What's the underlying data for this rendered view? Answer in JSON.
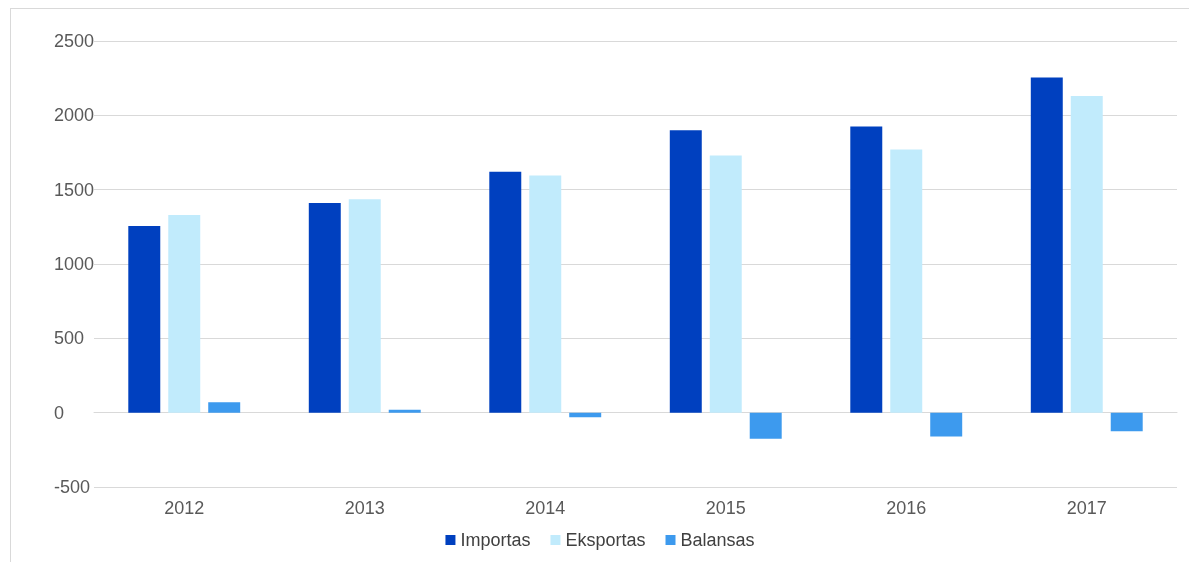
{
  "chart_data": {
    "type": "bar",
    "categories": [
      "2012",
      "2013",
      "2014",
      "2015",
      "2016",
      "2017"
    ],
    "series": [
      {
        "name": "Importas",
        "color": "#0040bf",
        "values": [
          1255,
          1410,
          1620,
          1900,
          1925,
          2255
        ]
      },
      {
        "name": "Eksportas",
        "color": "#c1ebfc",
        "values": [
          1330,
          1435,
          1595,
          1730,
          1770,
          2130
        ]
      },
      {
        "name": "Balansas",
        "color": "#3d9aee",
        "values": [
          70,
          20,
          -30,
          -175,
          -160,
          -125
        ]
      }
    ],
    "ylim": [
      -500,
      2500
    ],
    "yticks": [
      -500,
      0,
      500,
      1000,
      1500,
      2000,
      2500
    ],
    "grid": "y",
    "legend": "bottom"
  }
}
